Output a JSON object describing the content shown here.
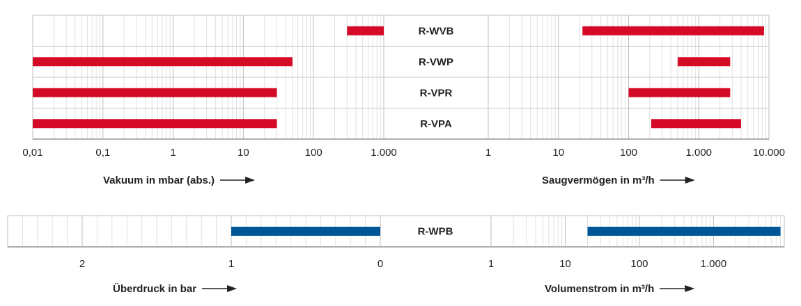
{
  "chart_data": [
    {
      "type": "bar",
      "bar_style": "floating range bars",
      "categories": [
        "R-WVB",
        "R-VWP",
        "R-VPR",
        "R-VPA"
      ],
      "color": "#d50a26",
      "panels": [
        {
          "xlabel": "Vakuum in mbar (abs.)",
          "scale": "log",
          "xlim": [
            0.01,
            1000
          ],
          "ticks": [
            0.01,
            0.1,
            1,
            10,
            100,
            1000
          ],
          "tick_labels": [
            "0,01",
            "0,1",
            "1",
            "10",
            "100",
            "1.000"
          ],
          "ranges": [
            [
              300,
              1000
            ],
            [
              0.01,
              50
            ],
            [
              0.01,
              30
            ],
            [
              0.01,
              30
            ]
          ]
        },
        {
          "xlabel": "Saugvermögen in m³/h",
          "scale": "log",
          "xlim": [
            1,
            10000
          ],
          "ticks": [
            1,
            10,
            100,
            1000,
            10000
          ],
          "tick_labels": [
            "1",
            "10",
            "100",
            "1.000",
            "10.000"
          ],
          "ranges": [
            [
              22,
              8500
            ],
            [
              500,
              2800
            ],
            [
              100,
              2800
            ],
            [
              210,
              4000
            ]
          ]
        }
      ],
      "grid": true
    },
    {
      "type": "bar",
      "bar_style": "floating range bars",
      "categories": [
        "R-WPB"
      ],
      "color": "#005596",
      "panels": [
        {
          "xlabel": "Überdruck in bar",
          "scale": "linear reversed",
          "xlim": [
            2.5,
            0
          ],
          "ticks": [
            2,
            1,
            0
          ],
          "tick_labels": [
            "2",
            "1",
            "0"
          ],
          "ranges": [
            [
              1,
              0
            ]
          ]
        },
        {
          "xlabel": "Volumenstrom in m³/h",
          "scale": "log",
          "xlim": [
            1,
            9000
          ],
          "ticks": [
            1,
            10,
            100,
            1000
          ],
          "tick_labels": [
            "1",
            "10",
            "100",
            "1.000"
          ],
          "ranges": [
            [
              20,
              8000
            ]
          ]
        }
      ],
      "grid": true
    }
  ]
}
